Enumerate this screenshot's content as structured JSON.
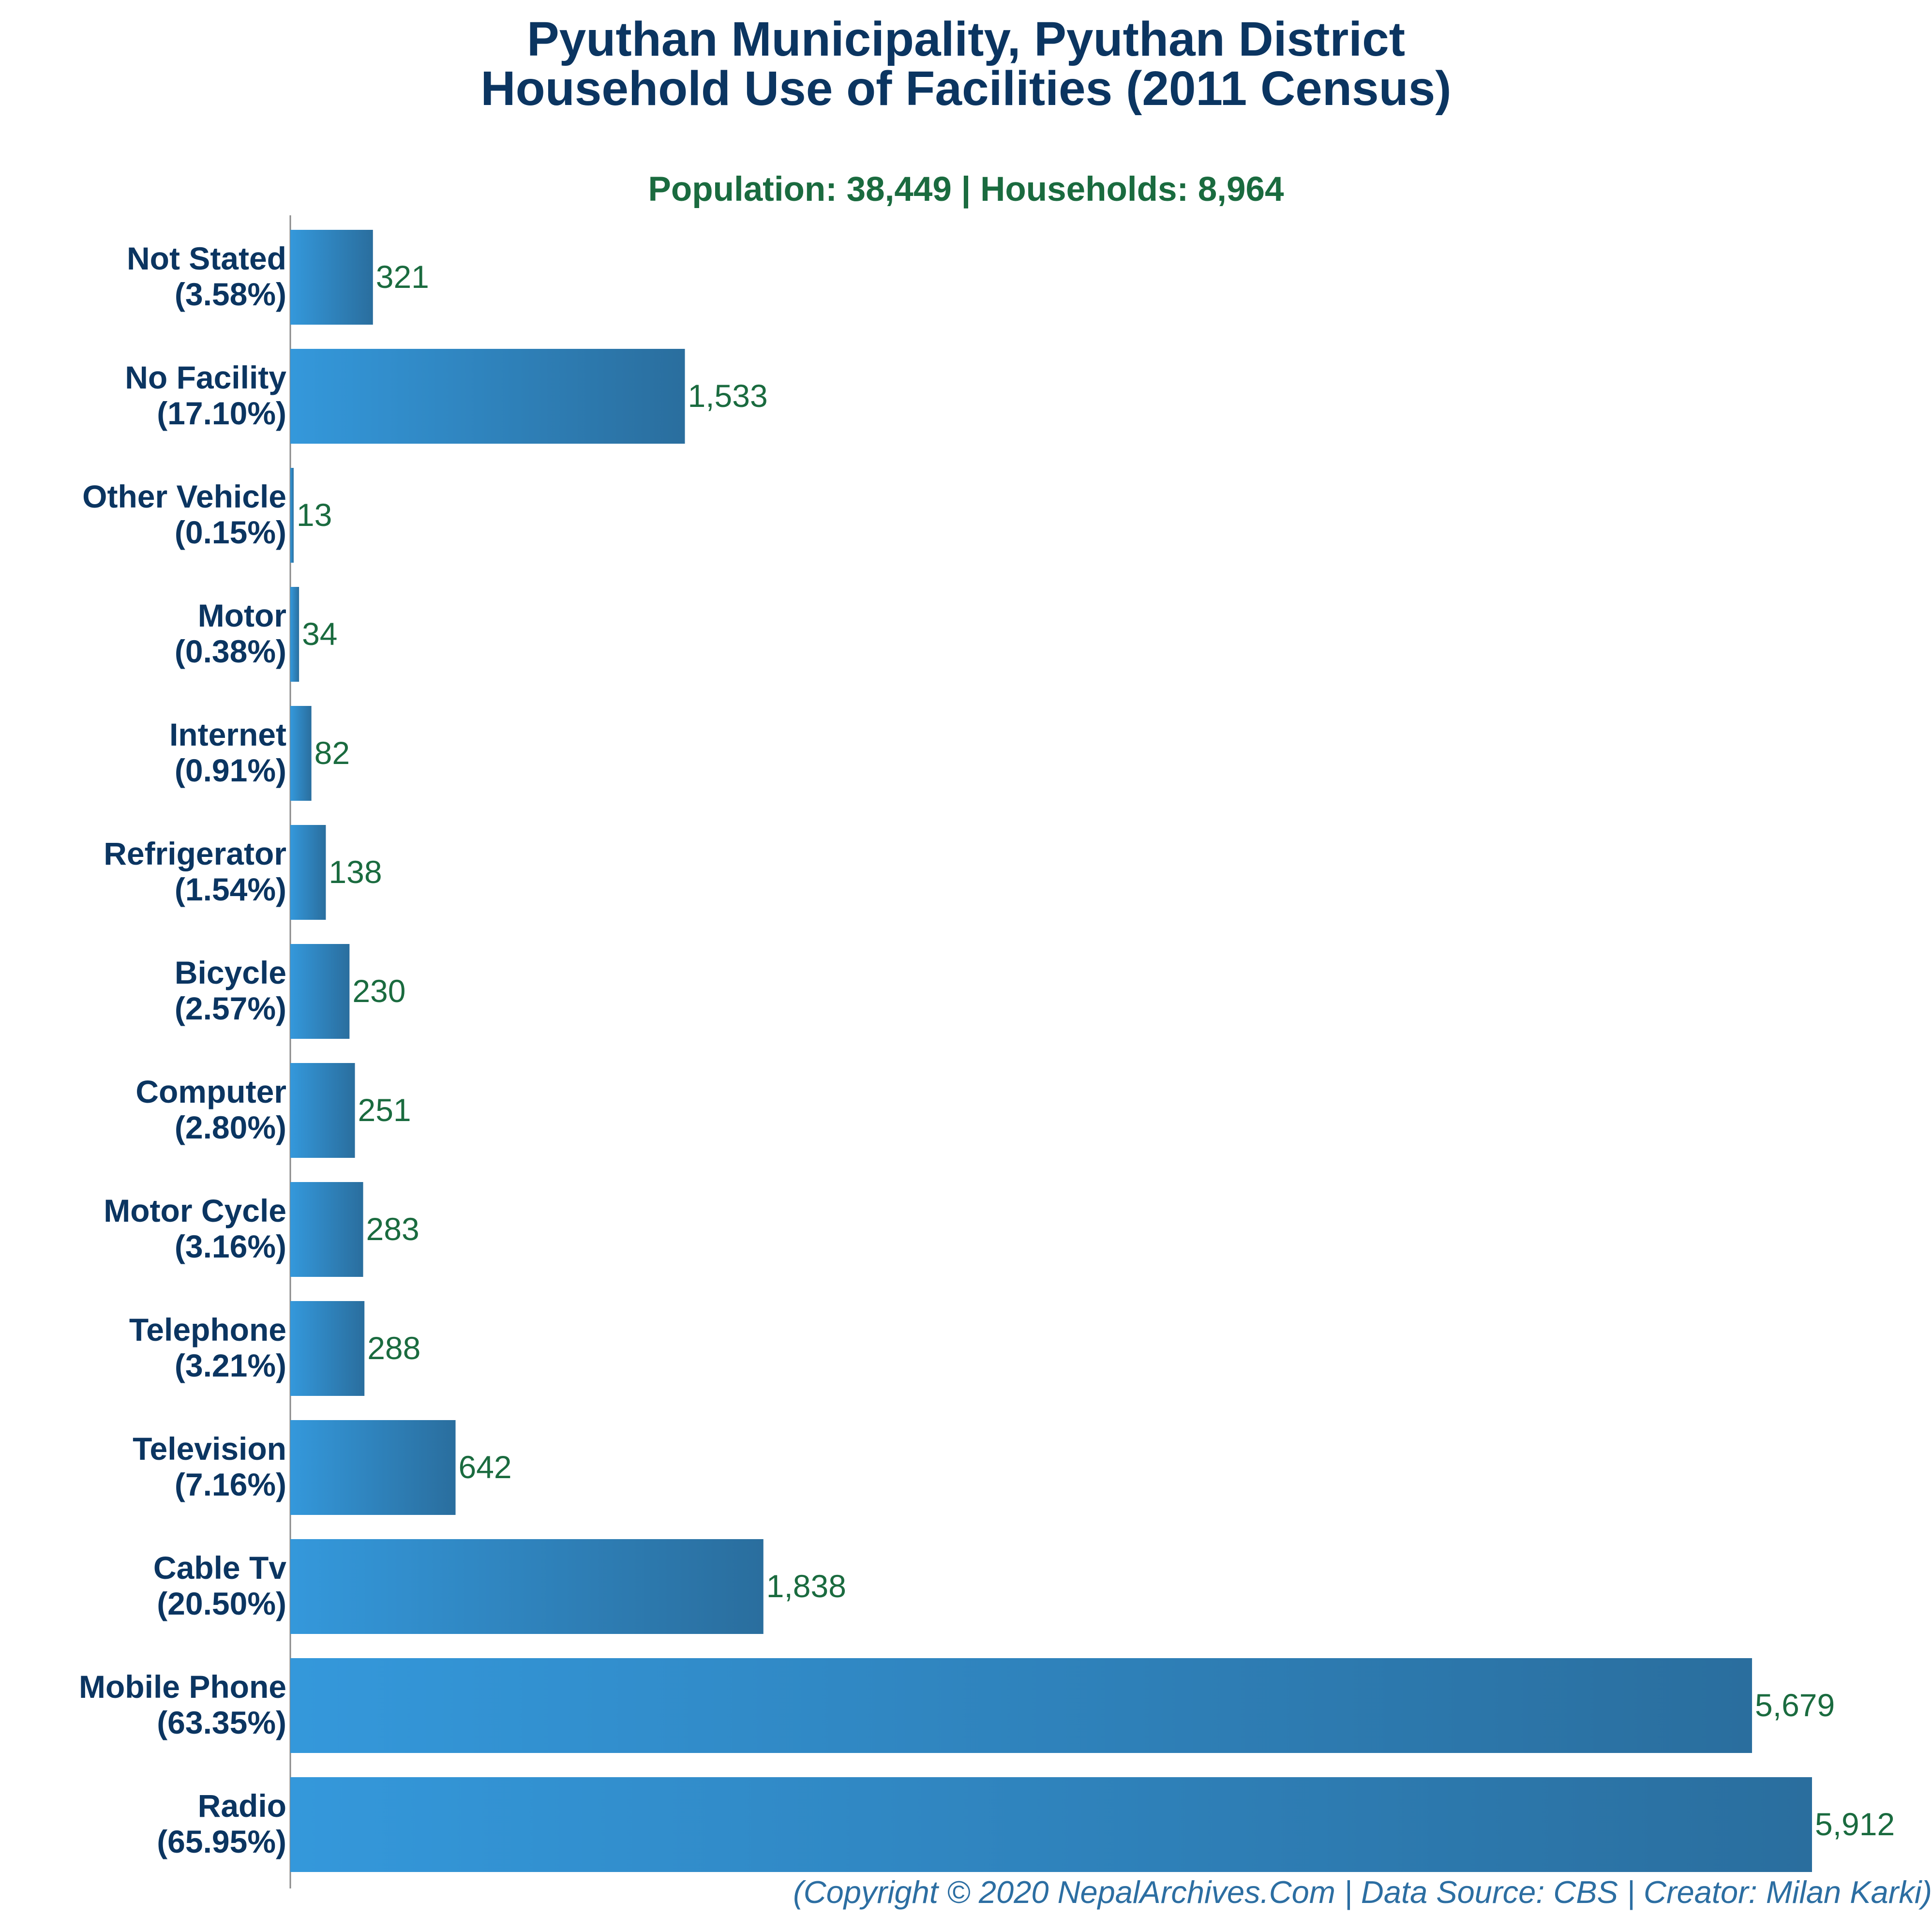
{
  "header": {
    "title_line1": "Pyuthan Municipality, Pyuthan District",
    "title_line2": "Household Use of Facilities (2011 Census)",
    "subtitle": "Population: 38,449 | Households: 8,964"
  },
  "footer": {
    "credit": "(Copyright © 2020 NepalArchives.Com | Data Source: CBS | Creator: Milan Karki)"
  },
  "colors": {
    "title": "#0b3561",
    "subtitle": "#1a6b3f",
    "bar_start": "#3498db",
    "bar_end": "#2a6e9e",
    "value_label": "#1a6b3f",
    "axis": "#888888",
    "footer": "#2c6ea2"
  },
  "chart_data": {
    "type": "bar",
    "orientation": "horizontal",
    "categories": [
      "Not Stated",
      "No Facility",
      "Other Vehicle",
      "Motor",
      "Internet",
      "Refrigerator",
      "Bicycle",
      "Computer",
      "Motor Cycle",
      "Telephone",
      "Television",
      "Cable Tv",
      "Mobile Phone",
      "Radio"
    ],
    "percent_labels": [
      "(3.58%)",
      "(17.10%)",
      "(0.15%)",
      "(0.38%)",
      "(0.91%)",
      "(1.54%)",
      "(2.57%)",
      "(2.80%)",
      "(3.16%)",
      "(3.21%)",
      "(7.16%)",
      "(20.50%)",
      "(63.35%)",
      "(65.95%)"
    ],
    "values": [
      321,
      1533,
      13,
      34,
      82,
      138,
      230,
      251,
      283,
      288,
      642,
      1838,
      5679,
      5912
    ],
    "value_labels": [
      "321",
      "1,533",
      "13",
      "34",
      "82",
      "138",
      "230",
      "251",
      "283",
      "288",
      "642",
      "1,838",
      "5,679",
      "5,912"
    ],
    "xlim": [
      0,
      5912
    ],
    "grid": false,
    "legend": "none"
  }
}
